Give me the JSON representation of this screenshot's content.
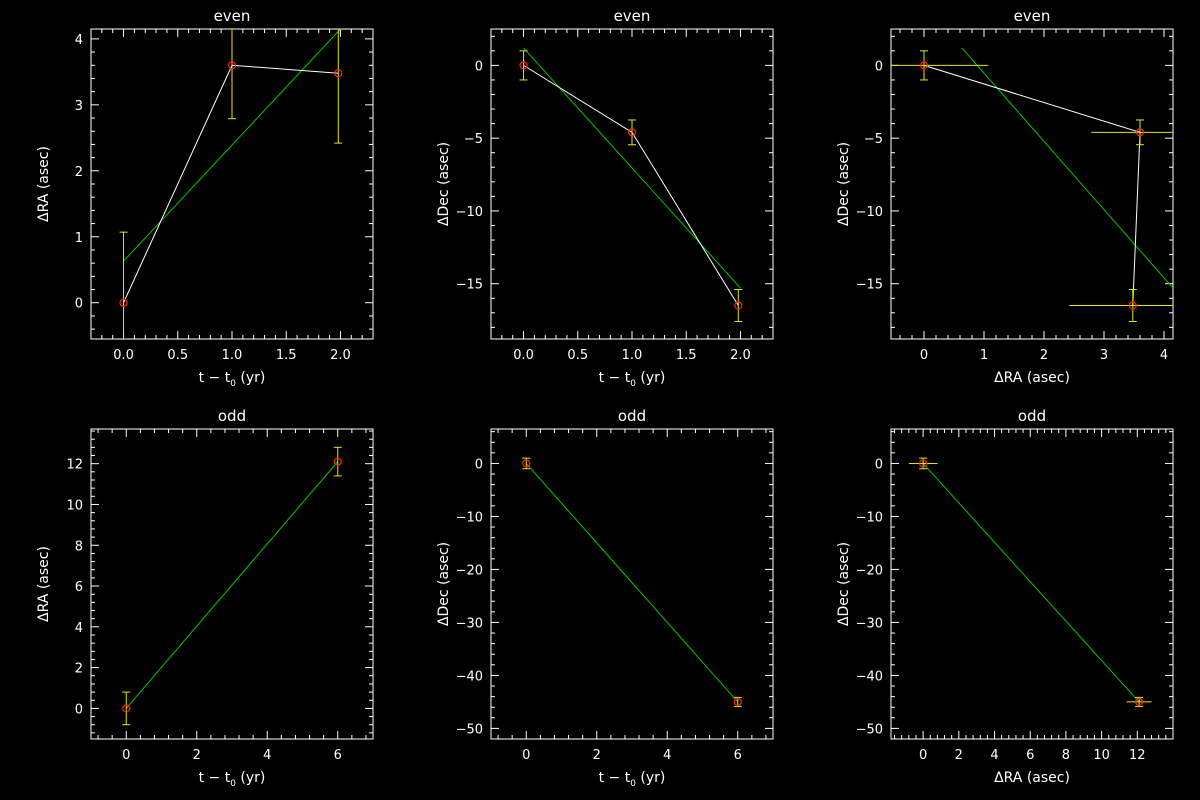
{
  "colors": {
    "background": "#000000",
    "axes": "#ffffff",
    "data_line": "#ffffff",
    "fit_line": "#00c800",
    "error_bar": "#e6e600",
    "marker": "#ff2020"
  },
  "chart_data": [
    {
      "type": "line",
      "panel": "top-left",
      "title": "even",
      "xlabel": "t − t",
      "xlabel_sub": "0",
      "xlabel_suffix": " (yr)",
      "ylabel": "ΔRA (asec)",
      "xlim": [
        -0.3,
        2.3
      ],
      "ylim": [
        -0.55,
        4.15
      ],
      "xticks": [
        0.0,
        0.5,
        1.0,
        1.5,
        2.0
      ],
      "xtick_labels": [
        "0.0",
        "0.5",
        "1.0",
        "1.5",
        "2.0"
      ],
      "yticks": [
        0,
        1,
        2,
        3,
        4
      ],
      "ytick_labels": [
        "0",
        "1",
        "2",
        "3",
        "4"
      ],
      "grid": false,
      "series": [
        {
          "x": [
            0.0,
            1.0,
            1.98
          ],
          "y": [
            0.0,
            3.6,
            3.48
          ],
          "yerr": [
            1.07,
            0.81,
            1.06
          ]
        }
      ],
      "fit": {
        "x": [
          0.0,
          2.0
        ],
        "y": [
          0.63,
          4.15
        ]
      }
    },
    {
      "type": "line",
      "panel": "top-middle",
      "title": "even",
      "xlabel": "t − t",
      "xlabel_sub": "0",
      "xlabel_suffix": " (yr)",
      "ylabel": "ΔDec (asec)",
      "xlim": [
        -0.3,
        2.3
      ],
      "ylim": [
        -18.8,
        2.5
      ],
      "xticks": [
        0.0,
        0.5,
        1.0,
        1.5,
        2.0
      ],
      "xtick_labels": [
        "0.0",
        "0.5",
        "1.0",
        "1.5",
        "2.0"
      ],
      "yticks": [
        0,
        -5,
        -10,
        -15
      ],
      "ytick_labels": [
        "0",
        "−5",
        "−10",
        "−15"
      ],
      "grid": false,
      "series": [
        {
          "x": [
            0.0,
            1.0,
            1.98
          ],
          "y": [
            0.0,
            -4.6,
            -16.5
          ],
          "yerr": [
            1.0,
            0.85,
            1.1
          ]
        }
      ],
      "fit": {
        "x": [
          0.0,
          2.0
        ],
        "y": [
          1.2,
          -15.3
        ]
      }
    },
    {
      "type": "line",
      "panel": "top-right",
      "title": "even",
      "xlabel": "ΔRA (asec)",
      "ylabel": "ΔDec (asec)",
      "xlim": [
        -0.55,
        4.15
      ],
      "ylim": [
        -18.8,
        2.5
      ],
      "xticks": [
        0,
        1,
        2,
        3,
        4
      ],
      "xtick_labels": [
        "0",
        "1",
        "2",
        "3",
        "4"
      ],
      "yticks": [
        0,
        -5,
        -10,
        -15
      ],
      "ytick_labels": [
        "0",
        "−5",
        "−10",
        "−15"
      ],
      "grid": false,
      "series": [
        {
          "x": [
            0.0,
            3.6,
            3.48
          ],
          "y": [
            0.0,
            -4.6,
            -16.5
          ],
          "xerr": [
            1.07,
            0.81,
            1.06
          ],
          "yerr": [
            1.0,
            0.85,
            1.1
          ]
        }
      ],
      "fit": {
        "x": [
          0.63,
          4.15
        ],
        "y": [
          1.2,
          -15.3
        ]
      }
    },
    {
      "type": "line",
      "panel": "bottom-left",
      "title": "odd",
      "xlabel": "t − t",
      "xlabel_sub": "0",
      "xlabel_suffix": " (yr)",
      "ylabel": "ΔRA (asec)",
      "xlim": [
        -1,
        7
      ],
      "ylim": [
        -1.5,
        13.7
      ],
      "xticks": [
        0,
        2,
        4,
        6
      ],
      "xtick_labels": [
        "0",
        "2",
        "4",
        "6"
      ],
      "yticks": [
        0,
        2,
        4,
        6,
        8,
        10,
        12
      ],
      "ytick_labels": [
        "0",
        "2",
        "4",
        "6",
        "8",
        "10",
        "12"
      ],
      "grid": false,
      "series": [
        {
          "x": [
            0,
            6
          ],
          "y": [
            0.0,
            12.1
          ],
          "yerr": [
            0.8,
            0.7
          ]
        }
      ],
      "fit": {
        "x": [
          0,
          6
        ],
        "y": [
          0.0,
          12.1
        ]
      }
    },
    {
      "type": "line",
      "panel": "bottom-middle",
      "title": "odd",
      "xlabel": "t − t",
      "xlabel_sub": "0",
      "xlabel_suffix": " (yr)",
      "ylabel": "ΔDec (asec)",
      "xlim": [
        -1,
        7
      ],
      "ylim": [
        -52,
        6.5
      ],
      "xticks": [
        0,
        2,
        4,
        6
      ],
      "xtick_labels": [
        "0",
        "2",
        "4",
        "6"
      ],
      "yticks": [
        0,
        -10,
        -20,
        -30,
        -40,
        -50
      ],
      "ytick_labels": [
        "0",
        "−10",
        "−20",
        "−30",
        "−40",
        "−50"
      ],
      "grid": false,
      "series": [
        {
          "x": [
            0,
            6
          ],
          "y": [
            0.0,
            -45.0
          ],
          "yerr": [
            1.0,
            0.85
          ]
        }
      ],
      "fit": {
        "x": [
          0,
          6
        ],
        "y": [
          0.0,
          -45.0
        ]
      }
    },
    {
      "type": "line",
      "panel": "bottom-right",
      "title": "odd",
      "xlabel": "ΔRA (asec)",
      "ylabel": "ΔDec (asec)",
      "xlim": [
        -1.8,
        14
      ],
      "ylim": [
        -52,
        6.5
      ],
      "xticks": [
        0,
        2,
        4,
        6,
        8,
        10,
        12
      ],
      "xtick_labels": [
        "0",
        "2",
        "4",
        "6",
        "8",
        "10",
        "12"
      ],
      "yticks": [
        0,
        -10,
        -20,
        -30,
        -40,
        -50
      ],
      "ytick_labels": [
        "0",
        "−10",
        "−20",
        "−30",
        "−40",
        "−50"
      ],
      "grid": false,
      "series": [
        {
          "x": [
            0.0,
            12.1
          ],
          "y": [
            0.0,
            -45.0
          ],
          "xerr": [
            0.8,
            0.7
          ],
          "yerr": [
            1.0,
            0.85
          ]
        }
      ],
      "fit": {
        "x": [
          0.0,
          12.1
        ],
        "y": [
          0.0,
          -45.0
        ]
      }
    }
  ]
}
